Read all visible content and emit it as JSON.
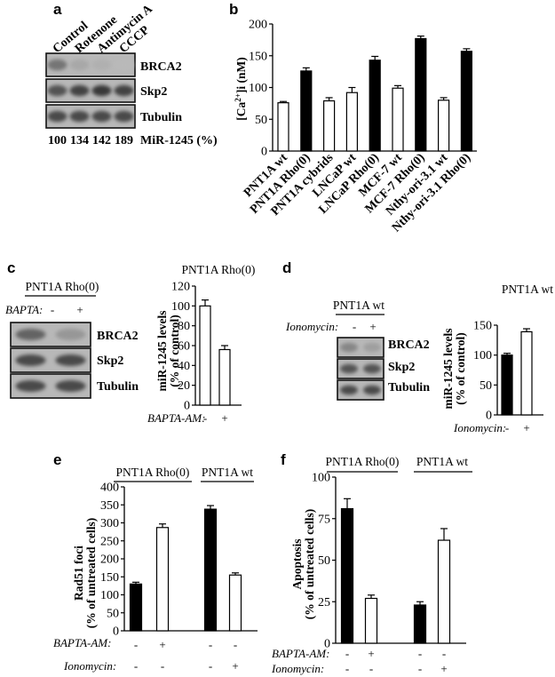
{
  "panels": {
    "a": {
      "letter": "a",
      "lanes": [
        "Control",
        "Rotenone",
        "Antimycin A",
        "CCCP"
      ],
      "blots": [
        "BRCA2",
        "Skp2",
        "Tubulin"
      ],
      "mir_values": [
        "100",
        "134",
        "142",
        "189"
      ],
      "mir_label": "MiR-1245 (%)",
      "band_intensity": {
        "BRCA2": [
          0.55,
          0.25,
          0.2,
          0.15
        ],
        "Skp2": [
          0.75,
          0.85,
          0.9,
          0.85
        ],
        "Tubulin": [
          0.8,
          0.8,
          0.8,
          0.8
        ]
      }
    },
    "b": {
      "letter": "b",
      "ylabel_main": "[Ca",
      "ylabel_sup": "2+",
      "ylabel_tail": "]i (nM)"
    },
    "c": {
      "letter": "c",
      "header": "PNT1A Rho(0)",
      "condition": "BAPTA:",
      "signs": [
        "-",
        "+"
      ],
      "blots": [
        "BRCA2",
        "Skp2",
        "Tubulin"
      ],
      "chart_title": "PNT1A Rho(0)",
      "ylabel": [
        "miR-1245 levels",
        "(% of control)"
      ],
      "xcond": "BAPTA-AM:"
    },
    "d": {
      "letter": "d",
      "header": "PNT1A wt",
      "condition": "Ionomycin:",
      "signs": [
        "-",
        "+"
      ],
      "blots": [
        "BRCA2",
        "Skp2",
        "Tubulin"
      ],
      "chart_title": "PNT1A wt",
      "ylabel": [
        "miR-1245 levels",
        "(% of control)"
      ],
      "xcond": "Ionomycin:"
    },
    "e": {
      "letter": "e",
      "groups": [
        "PNT1A Rho(0)",
        "PNT1A wt"
      ],
      "ylabel": [
        "Rad51 foci",
        "(% of untreated cells)"
      ],
      "conditions": [
        {
          "label": "BAPTA-AM:",
          "signs": [
            "-",
            "+",
            "-",
            "-"
          ]
        },
        {
          "label": "Ionomycin:",
          "signs": [
            "-",
            "-",
            "-",
            "+"
          ]
        }
      ]
    },
    "f": {
      "letter": "f",
      "groups": [
        "PNT1A Rho(0)",
        "PNT1A wt"
      ],
      "ylabel": [
        "Apoptosis",
        "(% of untreated cells)"
      ],
      "conditions": [
        {
          "label": "BAPTA-AM:",
          "signs": [
            "-",
            "+",
            "-",
            "-"
          ]
        },
        {
          "label": "Ionomycin:",
          "signs": [
            "-",
            "-",
            "-",
            "+"
          ]
        }
      ]
    }
  },
  "chart_data": [
    {
      "id": "b",
      "type": "bar",
      "categories": [
        "PNT1A wt",
        "PNT1A Rho(0)",
        "PNT1A cybrids",
        "LNCaP wt",
        "LNCaP Rho(0)",
        "MCF-7 wt",
        "MCF-7 Rho(0)",
        "Nthy-ori-3.1 wt",
        "Nthy-ori-3.1 Rho(0)"
      ],
      "values": [
        76,
        126,
        79,
        92,
        143,
        99,
        177,
        80,
        157
      ],
      "errors": [
        2,
        5,
        5,
        8,
        6,
        4,
        4,
        4,
        4
      ],
      "fills": [
        "white",
        "black",
        "white",
        "white",
        "black",
        "white",
        "black",
        "white",
        "black"
      ],
      "ylim": [
        0,
        200
      ],
      "yticks": [
        0,
        50,
        100,
        150,
        200
      ]
    },
    {
      "id": "c",
      "type": "bar",
      "categories": [
        "-",
        "+"
      ],
      "values": [
        100,
        56
      ],
      "errors": [
        6,
        4
      ],
      "fills": [
        "white",
        "white"
      ],
      "ylim": [
        0,
        120
      ],
      "yticks": [
        0,
        20,
        40,
        60,
        80,
        100,
        120
      ]
    },
    {
      "id": "d",
      "type": "bar",
      "categories": [
        "-",
        "+"
      ],
      "values": [
        100,
        139
      ],
      "errors": [
        3,
        5
      ],
      "fills": [
        "black",
        "white"
      ],
      "ylim": [
        0,
        150
      ],
      "yticks": [
        0,
        50,
        100,
        150
      ]
    },
    {
      "id": "e",
      "type": "bar",
      "categories": [
        "PNT1A Rho(0) -",
        "PNT1A Rho(0) +",
        "PNT1A wt -",
        "PNT1A wt +"
      ],
      "values": [
        130,
        287,
        338,
        155
      ],
      "errors": [
        5,
        10,
        10,
        6
      ],
      "fills": [
        "black",
        "white",
        "black",
        "white"
      ],
      "ylim": [
        0,
        400
      ],
      "yticks": [
        0,
        50,
        100,
        150,
        200,
        250,
        300,
        350,
        400
      ]
    },
    {
      "id": "f",
      "type": "bar",
      "categories": [
        "PNT1A Rho(0) -",
        "PNT1A Rho(0) +",
        "PNT1A wt -",
        "PNT1A wt +"
      ],
      "values": [
        81,
        27,
        23,
        62
      ],
      "errors": [
        6,
        2,
        2,
        7
      ],
      "fills": [
        "black",
        "white",
        "black",
        "white"
      ],
      "ylim": [
        0,
        100
      ],
      "yticks": [
        0,
        25,
        50,
        75,
        100
      ]
    }
  ]
}
